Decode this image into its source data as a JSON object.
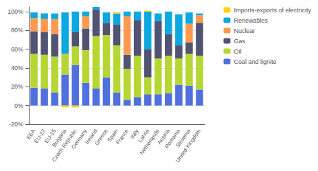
{
  "chart_data": {
    "type": "bar",
    "stacked": true,
    "grid": true,
    "legend": "upper right",
    "categories": [
      "EEA",
      "EU-27",
      "EU-15",
      "Bulgaria",
      "Czech Republic",
      "Germany",
      "Ireland",
      "Greece",
      "Spain",
      "France",
      "Italy",
      "Latvia",
      "Netherlands",
      "Austria",
      "Romania",
      "Slovenia",
      "United Kingdom"
    ],
    "series": [
      {
        "name": "Coal and lignite",
        "values": [
          19,
          18,
          14,
          33,
          43,
          24,
          18,
          30,
          14,
          6,
          9,
          12,
          12,
          13,
          22,
          21,
          17
        ]
      },
      {
        "name": "Oil",
        "values": [
          36,
          36,
          38,
          22,
          20,
          35,
          56,
          45,
          50,
          33,
          44,
          18,
          38,
          40,
          28,
          34,
          36
        ]
      },
      {
        "name": "Gas",
        "values": [
          24,
          24,
          24,
          0,
          15,
          23,
          28,
          13,
          22,
          15,
          38,
          30,
          40,
          23,
          14,
          12,
          35
        ]
      },
      {
        "name": "Nuclear",
        "values": [
          14,
          14,
          16,
          0,
          0,
          13,
          0,
          0,
          0,
          41,
          0,
          0,
          0,
          0,
          0,
          20,
          8
        ]
      },
      {
        "name": "Renewables",
        "values": [
          6,
          6,
          6,
          44,
          22,
          5,
          3,
          11,
          12,
          5,
          9,
          40,
          8,
          24,
          33,
          12,
          2
        ]
      },
      {
        "name": "Imports-exports of electricity",
        "values": [
          0,
          0,
          0,
          -2,
          -2,
          0,
          0,
          0,
          1,
          0,
          0,
          1,
          0,
          0,
          0,
          0,
          0
        ]
      }
    ],
    "ylim": [
      -20,
      105
    ],
    "yticks": [
      {
        "value": -20,
        "label": "-20%"
      },
      {
        "value": 0,
        "label": "0%"
      },
      {
        "value": 20,
        "label": "20%"
      },
      {
        "value": 40,
        "label": "40%"
      },
      {
        "value": 60,
        "label": "60%"
      },
      {
        "value": 80,
        "label": "80%"
      },
      {
        "value": 100,
        "label": "100%"
      }
    ]
  }
}
